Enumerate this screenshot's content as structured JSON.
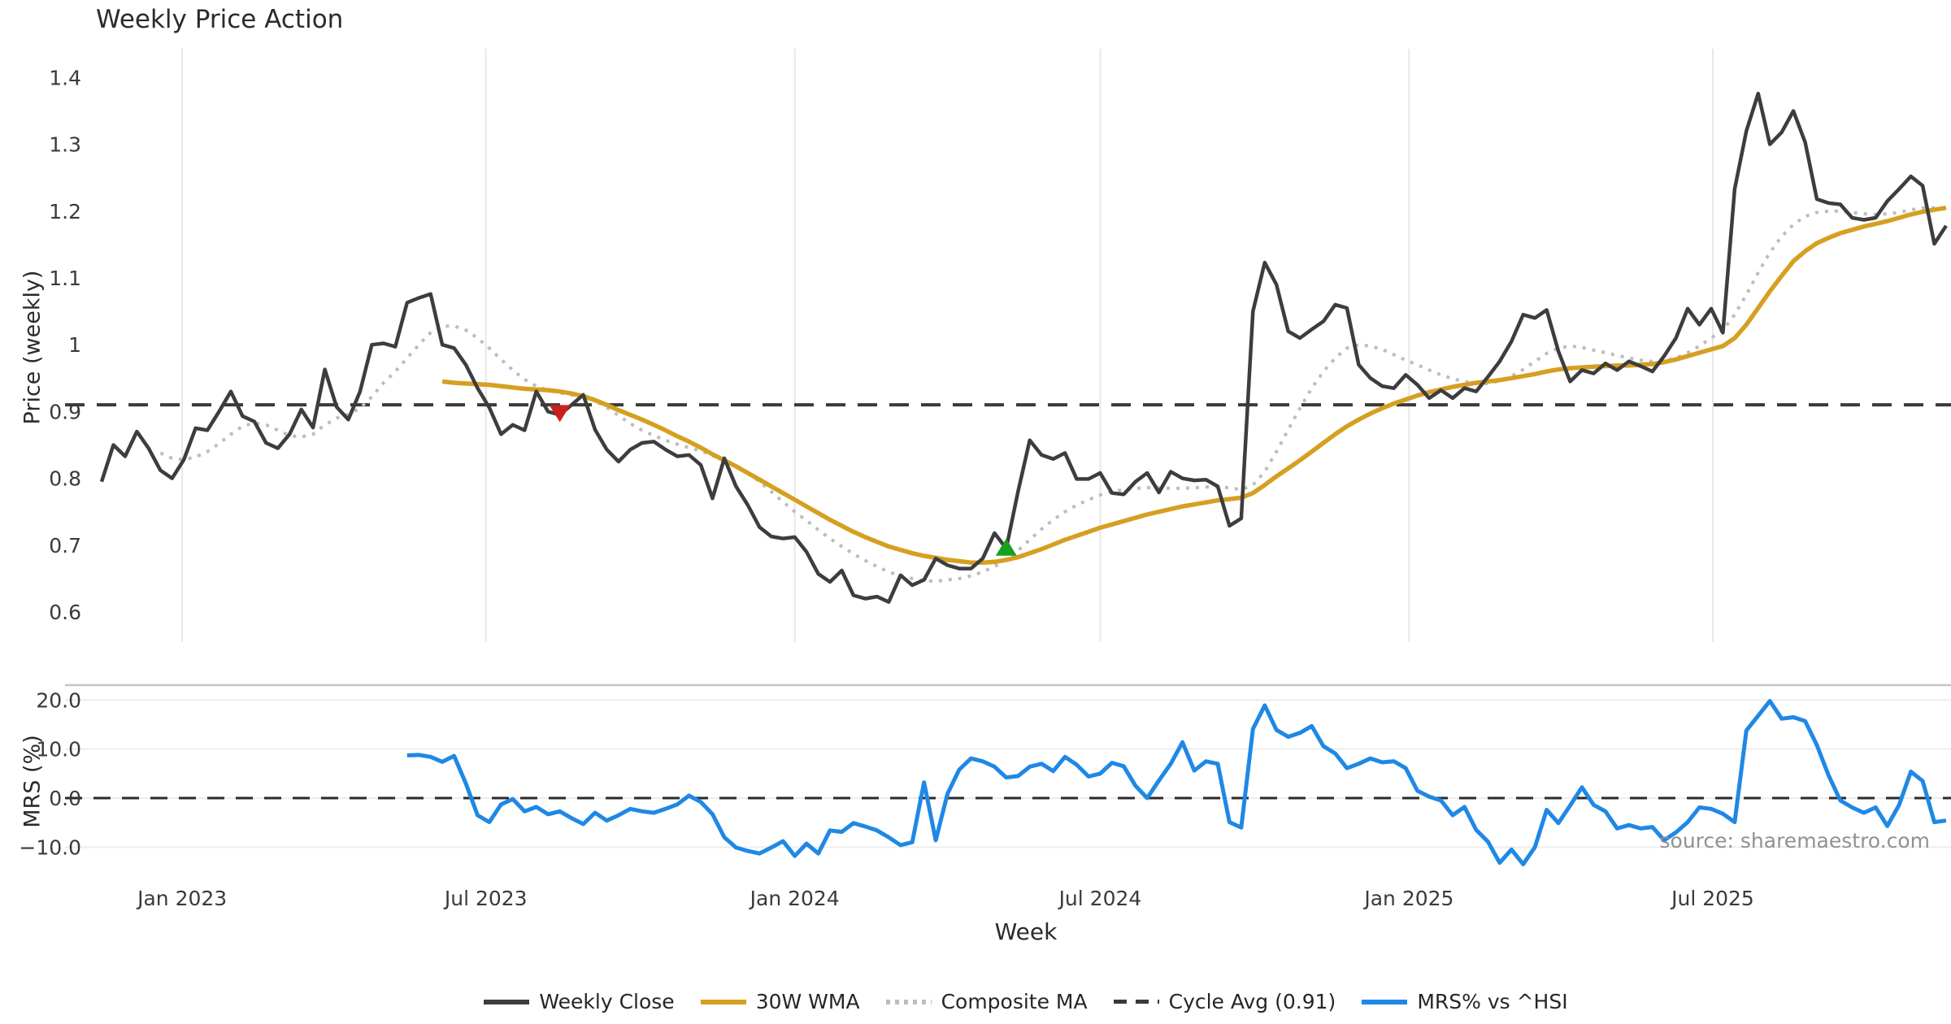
{
  "title": "Weekly Price Action",
  "source_note": "source: sharemaestro.com",
  "colors": {
    "weekly_close": "#3d3d3d",
    "wma": "#d5a021",
    "composite": "#bdbdbd",
    "cycle_avg": "#3a3a3a",
    "mrs": "#1f88e5",
    "buy_marker": "#16a11e",
    "sell_marker": "#c9201d",
    "grid_vertical": "#e7e7e7",
    "grid_horizontal": "#ededed",
    "panel_spine": "#c4c4c4",
    "tick_text": "#3a3a3a",
    "zero_dash": "#2a2a2a"
  },
  "legend": [
    {
      "label": "Weekly Close",
      "color": "#3d3d3d",
      "style": "solid"
    },
    {
      "label": "30W WMA",
      "color": "#d5a021",
      "style": "solid"
    },
    {
      "label": "Composite MA",
      "color": "#bdbdbd",
      "style": "dotted"
    },
    {
      "label": "Cycle Avg (0.91)",
      "color": "#3a3a3a",
      "style": "dashed"
    },
    {
      "label": "MRS% vs ^HSI",
      "color": "#1f88e5",
      "style": "solid"
    }
  ],
  "chart_data": {
    "type": "line",
    "title": "Weekly Price Action",
    "xlabel": "Week",
    "x": {
      "start_date": "2022-11-14",
      "step_days": 7,
      "count": 158
    },
    "x_ticks": [
      {
        "label": "Jan 2023",
        "week_index": 6.86
      },
      {
        "label": "Jul 2023",
        "week_index": 32.71
      },
      {
        "label": "Jan 2024",
        "week_index": 59.0
      },
      {
        "label": "Jul 2024",
        "week_index": 85.0
      },
      {
        "label": "Jan 2025",
        "week_index": 111.29
      },
      {
        "label": "Jul 2025",
        "week_index": 137.14
      }
    ],
    "panels": [
      {
        "id": "price",
        "ylabel": "Price (weekly)",
        "ylim": [
          0.555,
          1.443
        ],
        "grid": "vertical",
        "y_ticks": [
          {
            "label": "1.4",
            "value": 1.4
          },
          {
            "label": "1.3",
            "value": 1.3
          },
          {
            "label": "1.2",
            "value": 1.2
          },
          {
            "label": "1.1",
            "value": 1.1
          },
          {
            "label": "1",
            "value": 1.0
          },
          {
            "label": "0.9",
            "value": 0.9
          },
          {
            "label": "0.8",
            "value": 0.8
          },
          {
            "label": "0.7",
            "value": 0.7
          },
          {
            "label": "0.6",
            "value": 0.6
          }
        ],
        "hline": {
          "name": "Cycle Avg (0.91)",
          "value": 0.91,
          "style": "dashed",
          "color": "#3a3a3a"
        },
        "series": [
          {
            "name": "Weekly Close",
            "style": "solid",
            "color": "#3d3d3d",
            "width": 4.5,
            "values": [
              0.795,
              0.85,
              0.833,
              0.87,
              0.845,
              0.812,
              0.8,
              0.828,
              0.875,
              0.872,
              0.9,
              0.93,
              0.893,
              0.885,
              0.853,
              0.845,
              0.866,
              0.903,
              0.876,
              0.963,
              0.907,
              0.888,
              0.93,
              1.0,
              1.002,
              0.997,
              1.063,
              1.07,
              1.076,
              1.0,
              0.995,
              0.97,
              0.935,
              0.906,
              0.866,
              0.88,
              0.872,
              0.93,
              0.9,
              0.895,
              0.91,
              0.925,
              0.873,
              0.843,
              0.825,
              0.843,
              0.853,
              0.855,
              0.843,
              0.833,
              0.835,
              0.82,
              0.77,
              0.83,
              0.788,
              0.76,
              0.727,
              0.713,
              0.71,
              0.712,
              0.69,
              0.657,
              0.645,
              0.662,
              0.625,
              0.62,
              0.623,
              0.615,
              0.655,
              0.64,
              0.648,
              0.68,
              0.67,
              0.665,
              0.665,
              0.68,
              0.718,
              0.695,
              0.78,
              0.857,
              0.835,
              0.829,
              0.838,
              0.799,
              0.799,
              0.808,
              0.778,
              0.776,
              0.795,
              0.808,
              0.779,
              0.81,
              0.8,
              0.797,
              0.798,
              0.788,
              0.729,
              0.74,
              1.05,
              1.123,
              1.09,
              1.02,
              1.01,
              1.023,
              1.035,
              1.06,
              1.055,
              0.97,
              0.95,
              0.938,
              0.935,
              0.955,
              0.94,
              0.92,
              0.932,
              0.92,
              0.935,
              0.93,
              0.952,
              0.975,
              1.005,
              1.045,
              1.04,
              1.052,
              0.99,
              0.945,
              0.962,
              0.957,
              0.972,
              0.962,
              0.975,
              0.968,
              0.96,
              0.983,
              1.01,
              1.054,
              1.03,
              1.054,
              1.018,
              1.233,
              1.32,
              1.376,
              1.3,
              1.318,
              1.35,
              1.303,
              1.218,
              1.212,
              1.21,
              1.19,
              1.187,
              1.19,
              1.215,
              1.233,
              1.252,
              1.238,
              1.151,
              1.178
            ]
          },
          {
            "name": "30W WMA",
            "style": "solid",
            "color": "#d5a021",
            "width": 5.5,
            "values": [
              null,
              null,
              null,
              null,
              null,
              null,
              null,
              null,
              null,
              null,
              null,
              null,
              null,
              null,
              null,
              null,
              null,
              null,
              null,
              null,
              null,
              null,
              null,
              null,
              null,
              null,
              null,
              null,
              null,
              0.945,
              0.943,
              0.942,
              0.941,
              0.94,
              0.938,
              0.936,
              0.934,
              0.933,
              0.932,
              0.93,
              0.927,
              0.923,
              0.917,
              0.91,
              0.902,
              0.895,
              0.888,
              0.88,
              0.872,
              0.863,
              0.855,
              0.846,
              0.836,
              0.827,
              0.818,
              0.808,
              0.798,
              0.788,
              0.778,
              0.768,
              0.758,
              0.748,
              0.738,
              0.729,
              0.72,
              0.712,
              0.705,
              0.698,
              0.693,
              0.688,
              0.684,
              0.681,
              0.678,
              0.676,
              0.674,
              0.674,
              0.675,
              0.678,
              0.682,
              0.688,
              0.694,
              0.701,
              0.708,
              0.714,
              0.72,
              0.726,
              0.731,
              0.736,
              0.741,
              0.746,
              0.75,
              0.754,
              0.758,
              0.761,
              0.764,
              0.767,
              0.769,
              0.771,
              0.778,
              0.79,
              0.803,
              0.815,
              0.827,
              0.84,
              0.853,
              0.866,
              0.878,
              0.888,
              0.897,
              0.905,
              0.912,
              0.918,
              0.924,
              0.929,
              0.933,
              0.937,
              0.94,
              0.943,
              0.945,
              0.947,
              0.95,
              0.953,
              0.956,
              0.96,
              0.963,
              0.965,
              0.966,
              0.967,
              0.968,
              0.969,
              0.969,
              0.97,
              0.971,
              0.974,
              0.978,
              0.983,
              0.988,
              0.993,
              0.998,
              1.01,
              1.03,
              1.055,
              1.08,
              1.103,
              1.125,
              1.14,
              1.152,
              1.16,
              1.167,
              1.172,
              1.177,
              1.181,
              1.185,
              1.19,
              1.195,
              1.199,
              1.202,
              1.205
            ]
          },
          {
            "name": "Composite MA",
            "style": "dotted",
            "color": "#bdbdbd",
            "width": 4,
            "values": [
              null,
              null,
              null,
              null,
              null,
              0.838,
              0.83,
              0.828,
              0.832,
              0.84,
              0.852,
              0.866,
              0.878,
              0.883,
              0.88,
              0.872,
              0.864,
              0.862,
              0.866,
              0.88,
              0.89,
              0.896,
              0.905,
              0.922,
              0.943,
              0.96,
              0.98,
              1.0,
              1.018,
              1.028,
              1.028,
              1.022,
              1.01,
              0.995,
              0.978,
              0.962,
              0.948,
              0.938,
              0.932,
              0.928,
              0.925,
              0.922,
              0.916,
              0.906,
              0.894,
              0.882,
              0.872,
              0.864,
              0.857,
              0.851,
              0.846,
              0.841,
              0.834,
              0.826,
              0.818,
              0.808,
              0.795,
              0.78,
              0.765,
              0.75,
              0.737,
              0.723,
              0.71,
              0.698,
              0.687,
              0.677,
              0.668,
              0.66,
              0.654,
              0.65,
              0.647,
              0.646,
              0.648,
              0.65,
              0.654,
              0.66,
              0.668,
              0.678,
              0.692,
              0.708,
              0.724,
              0.738,
              0.75,
              0.76,
              0.768,
              0.775,
              0.78,
              0.783,
              0.785,
              0.786,
              0.786,
              0.785,
              0.785,
              0.786,
              0.787,
              0.787,
              0.786,
              0.783,
              0.79,
              0.81,
              0.84,
              0.873,
              0.905,
              0.935,
              0.96,
              0.98,
              0.995,
              1.0,
              0.998,
              0.993,
              0.985,
              0.977,
              0.97,
              0.962,
              0.955,
              0.949,
              0.945,
              0.942,
              0.942,
              0.946,
              0.953,
              0.963,
              0.975,
              0.987,
              0.995,
              0.998,
              0.996,
              0.992,
              0.988,
              0.984,
              0.98,
              0.977,
              0.975,
              0.976,
              0.98,
              0.988,
              0.998,
              1.01,
              1.022,
              1.045,
              1.075,
              1.108,
              1.138,
              1.162,
              1.18,
              1.192,
              1.198,
              1.2,
              1.2,
              1.198,
              1.196,
              1.195,
              1.196,
              1.198,
              1.202,
              1.205,
              1.205,
              1.203
            ]
          }
        ],
        "markers": [
          {
            "name": "sell-signal",
            "shape": "triangle-down",
            "color": "#c9201d",
            "week_index": 39,
            "date": "2023-08-14",
            "value": 0.897
          },
          {
            "name": "buy-signal",
            "shape": "triangle-up",
            "color": "#16a11e",
            "week_index": 77,
            "date": "2024-05-06",
            "value": 0.697
          }
        ]
      },
      {
        "id": "mrs",
        "ylabel": "MRS (%)",
        "ylim": [
          -15.42,
          23.05
        ],
        "grid": "horizontal",
        "y_ticks": [
          {
            "label": "20.0",
            "value": 20
          },
          {
            "label": "10.0",
            "value": 10
          },
          {
            "label": "0.0",
            "value": 0
          },
          {
            "label": "−10.0",
            "value": -10
          }
        ],
        "hline": {
          "name": "Zero line",
          "value": 0,
          "style": "dashed",
          "color": "#2a2a2a"
        },
        "series": [
          {
            "name": "MRS% vs ^HSI",
            "style": "solid",
            "color": "#1f88e5",
            "width": 5,
            "values": [
              null,
              null,
              null,
              null,
              null,
              null,
              null,
              null,
              null,
              null,
              null,
              null,
              null,
              null,
              null,
              null,
              null,
              null,
              null,
              null,
              null,
              null,
              null,
              null,
              null,
              null,
              8.7,
              8.8,
              8.4,
              7.4,
              8.6,
              3.0,
              -3.5,
              -4.9,
              -1.3,
              -0.2,
              -2.7,
              -1.8,
              -3.3,
              -2.7,
              -4.1,
              -5.3,
              -3.0,
              -4.6,
              -3.5,
              -2.2,
              -2.7,
              -3.0,
              -2.2,
              -1.3,
              0.5,
              -0.8,
              -3.3,
              -8.0,
              -10.1,
              -10.8,
              -11.3,
              -10.1,
              -8.8,
              -11.8,
              -9.3,
              -11.3,
              -6.6,
              -6.9,
              -5.1,
              -5.8,
              -6.6,
              -8.0,
              -9.6,
              -9.0,
              3.2,
              -8.6,
              0.9,
              5.8,
              8.1,
              7.5,
              6.4,
              4.2,
              4.5,
              6.4,
              7.0,
              5.5,
              8.4,
              6.8,
              4.4,
              5.0,
              7.2,
              6.5,
              2.5,
              0.0,
              3.6,
              7.0,
              11.4,
              5.6,
              7.5,
              7.0,
              -4.9,
              -6.0,
              14.1,
              18.9,
              13.9,
              12.5,
              13.3,
              14.7,
              10.6,
              9.1,
              6.1,
              7.0,
              8.1,
              7.3,
              7.5,
              6.1,
              1.5,
              0.3,
              -0.5,
              -3.5,
              -1.8,
              -6.5,
              -8.9,
              -13.2,
              -10.5,
              -13.5,
              -10.0,
              -2.4,
              -5.1,
              -1.5,
              2.2,
              -1.4,
              -2.7,
              -6.2,
              -5.5,
              -6.2,
              -5.9,
              -8.6,
              -7.0,
              -4.9,
              -1.9,
              -2.2,
              -3.2,
              -4.9,
              13.8,
              16.8,
              19.8,
              16.2,
              16.5,
              15.7,
              10.8,
              4.6,
              -0.5,
              -1.9,
              -3.0,
              -1.9,
              -5.7,
              -1.4,
              5.4,
              3.5,
              -4.9,
              -4.6
            ]
          }
        ]
      }
    ]
  }
}
